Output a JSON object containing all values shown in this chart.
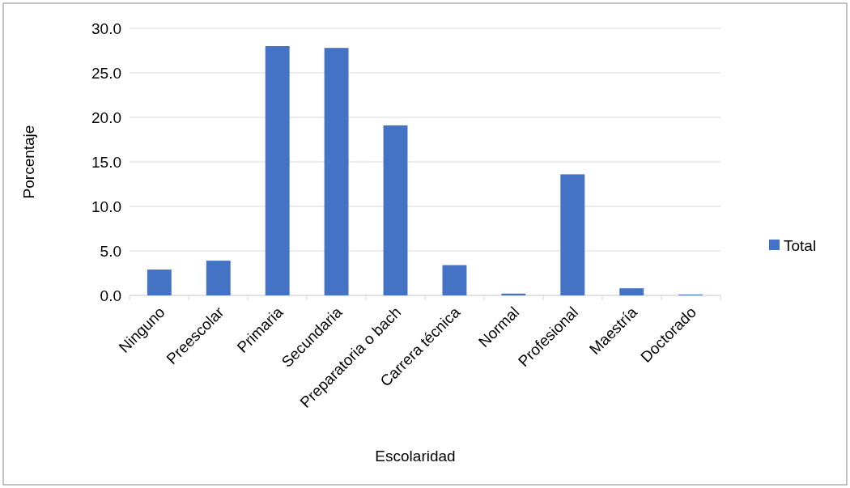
{
  "chart_data": {
    "type": "bar",
    "xlabel": "Escolaridad",
    "ylabel": "Porcentaje",
    "categories": [
      "Ninguno",
      "Preescolar",
      "Primaria",
      "Secundaria",
      "Preparatoria o bach",
      "Carrera técnica",
      "Normal",
      "Profesional",
      "Maestría",
      "Doctorado"
    ],
    "series": [
      {
        "name": "Total",
        "color": "#4472c4",
        "values": [
          2.9,
          3.9,
          28.0,
          27.8,
          19.1,
          3.4,
          0.2,
          13.6,
          0.8,
          0.1
        ]
      }
    ],
    "ylim": [
      0,
      30
    ],
    "yticks": [
      {
        "value": 0,
        "label": "0.0"
      },
      {
        "value": 5,
        "label": "5.0"
      },
      {
        "value": 10,
        "label": "10.0"
      },
      {
        "value": 15,
        "label": "15.0"
      },
      {
        "value": 20,
        "label": "20.0"
      },
      {
        "value": 25,
        "label": "25.0"
      },
      {
        "value": 30,
        "label": "30.0"
      }
    ],
    "grid": "y",
    "legend": "right"
  }
}
